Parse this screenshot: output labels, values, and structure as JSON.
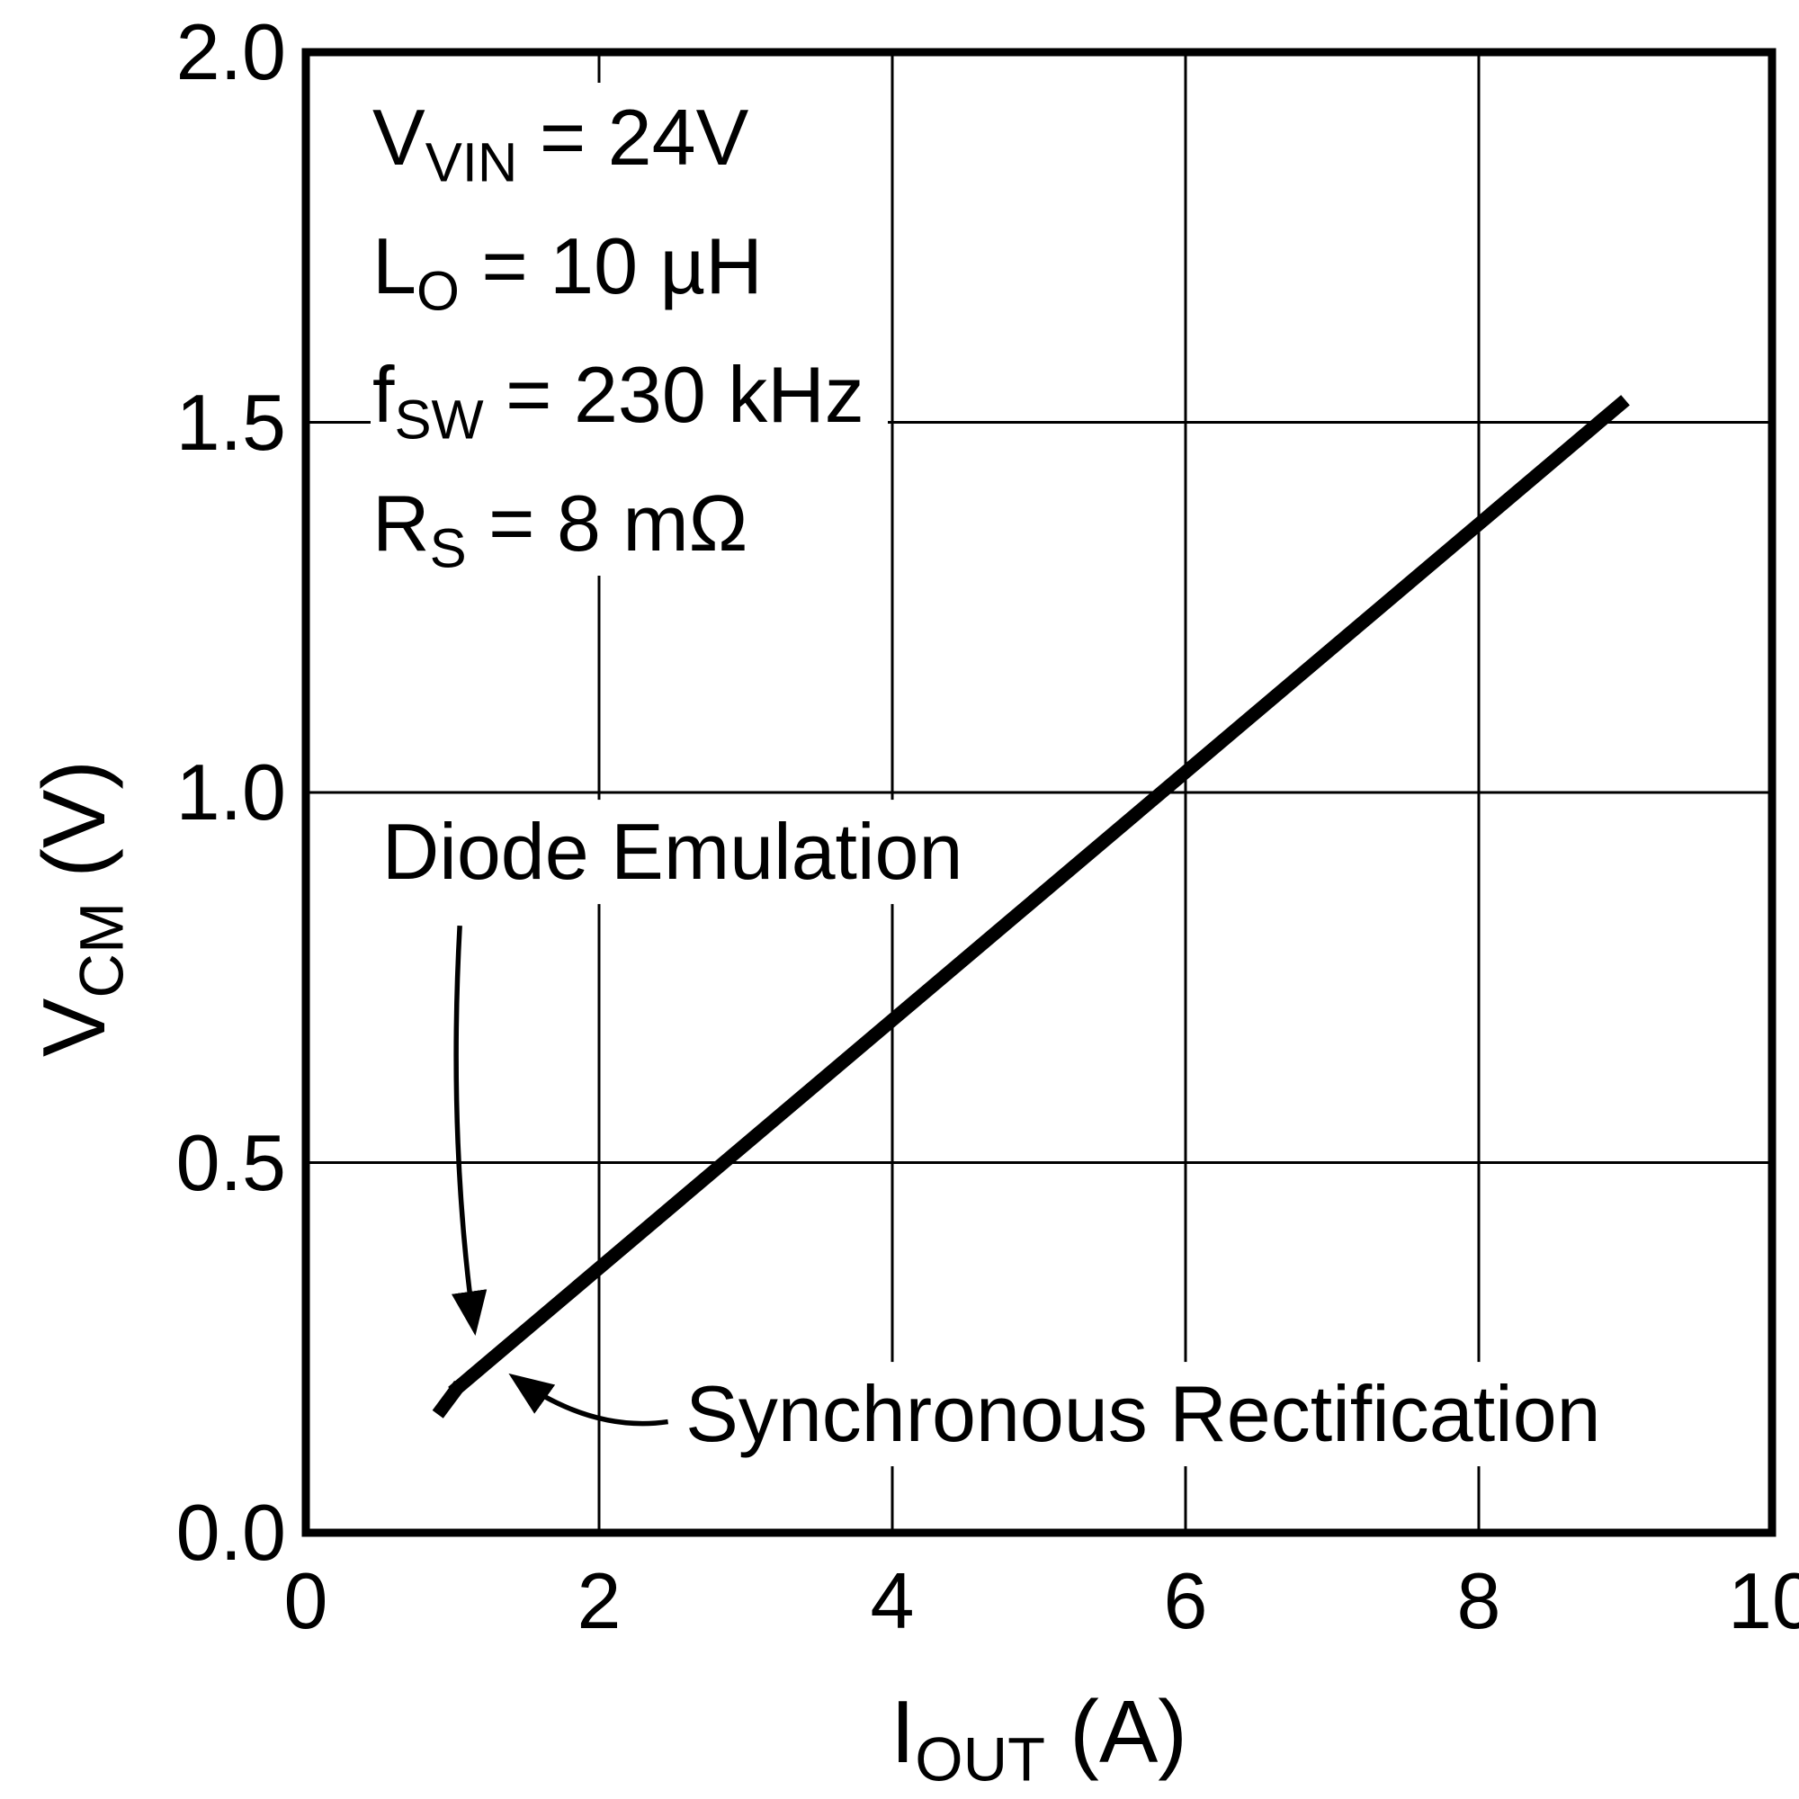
{
  "chart_data": {
    "type": "line",
    "xlabel": {
      "base": "I",
      "sub": "OUT",
      "rest": " (A)"
    },
    "ylabel": {
      "base": "V",
      "sub": "CM",
      "rest": " (V)"
    },
    "xlim": [
      0,
      10
    ],
    "ylim": [
      0,
      2
    ],
    "xticks": [
      0,
      2,
      4,
      6,
      8,
      10
    ],
    "xtick_labels": [
      "0",
      "2",
      "4",
      "6",
      "8",
      "10"
    ],
    "yticks": [
      0,
      0.5,
      1,
      1.5,
      2
    ],
    "ytick_labels": [
      "0.0",
      "0.5",
      "1.0",
      "1.5",
      "2.0"
    ],
    "grid": true,
    "legend": "none",
    "colors": {
      "axis": "#000000",
      "grid": "#000000",
      "line": "#000000",
      "text": "#000000",
      "background": "#ffffff"
    },
    "conditions": [
      {
        "base": "V",
        "sub": "VIN",
        "rest": " = 24V"
      },
      {
        "base": "L",
        "sub": "O",
        "rest": " = 10 µH"
      },
      {
        "base": "f",
        "sub": "SW",
        "rest": " = 230 kHz"
      },
      {
        "base": "R",
        "sub": "S",
        "rest": " = 8 mΩ"
      }
    ],
    "series": [
      {
        "name": "Synchronous Rectification",
        "points": [
          [
            1.0,
            0.19
          ],
          [
            9.0,
            1.53
          ]
        ]
      },
      {
        "name": "Diode Emulation",
        "points": [
          [
            0.9,
            0.16
          ],
          [
            1.05,
            0.2
          ]
        ]
      }
    ],
    "annotations": [
      {
        "text": "Diode Emulation",
        "x": 0.52,
        "y": 0.92,
        "arrow": {
          "from": [
            1.05,
            0.82
          ],
          "ctrl": [
            0.97,
            0.53
          ],
          "to": [
            1.15,
            0.275
          ]
        }
      },
      {
        "text": "Synchronous Rectification",
        "x": 2.59,
        "y": 0.16,
        "arrow": {
          "from": [
            2.47,
            0.15
          ],
          "ctrl": [
            1.95,
            0.135
          ],
          "to": [
            1.42,
            0.21
          ]
        }
      }
    ]
  }
}
